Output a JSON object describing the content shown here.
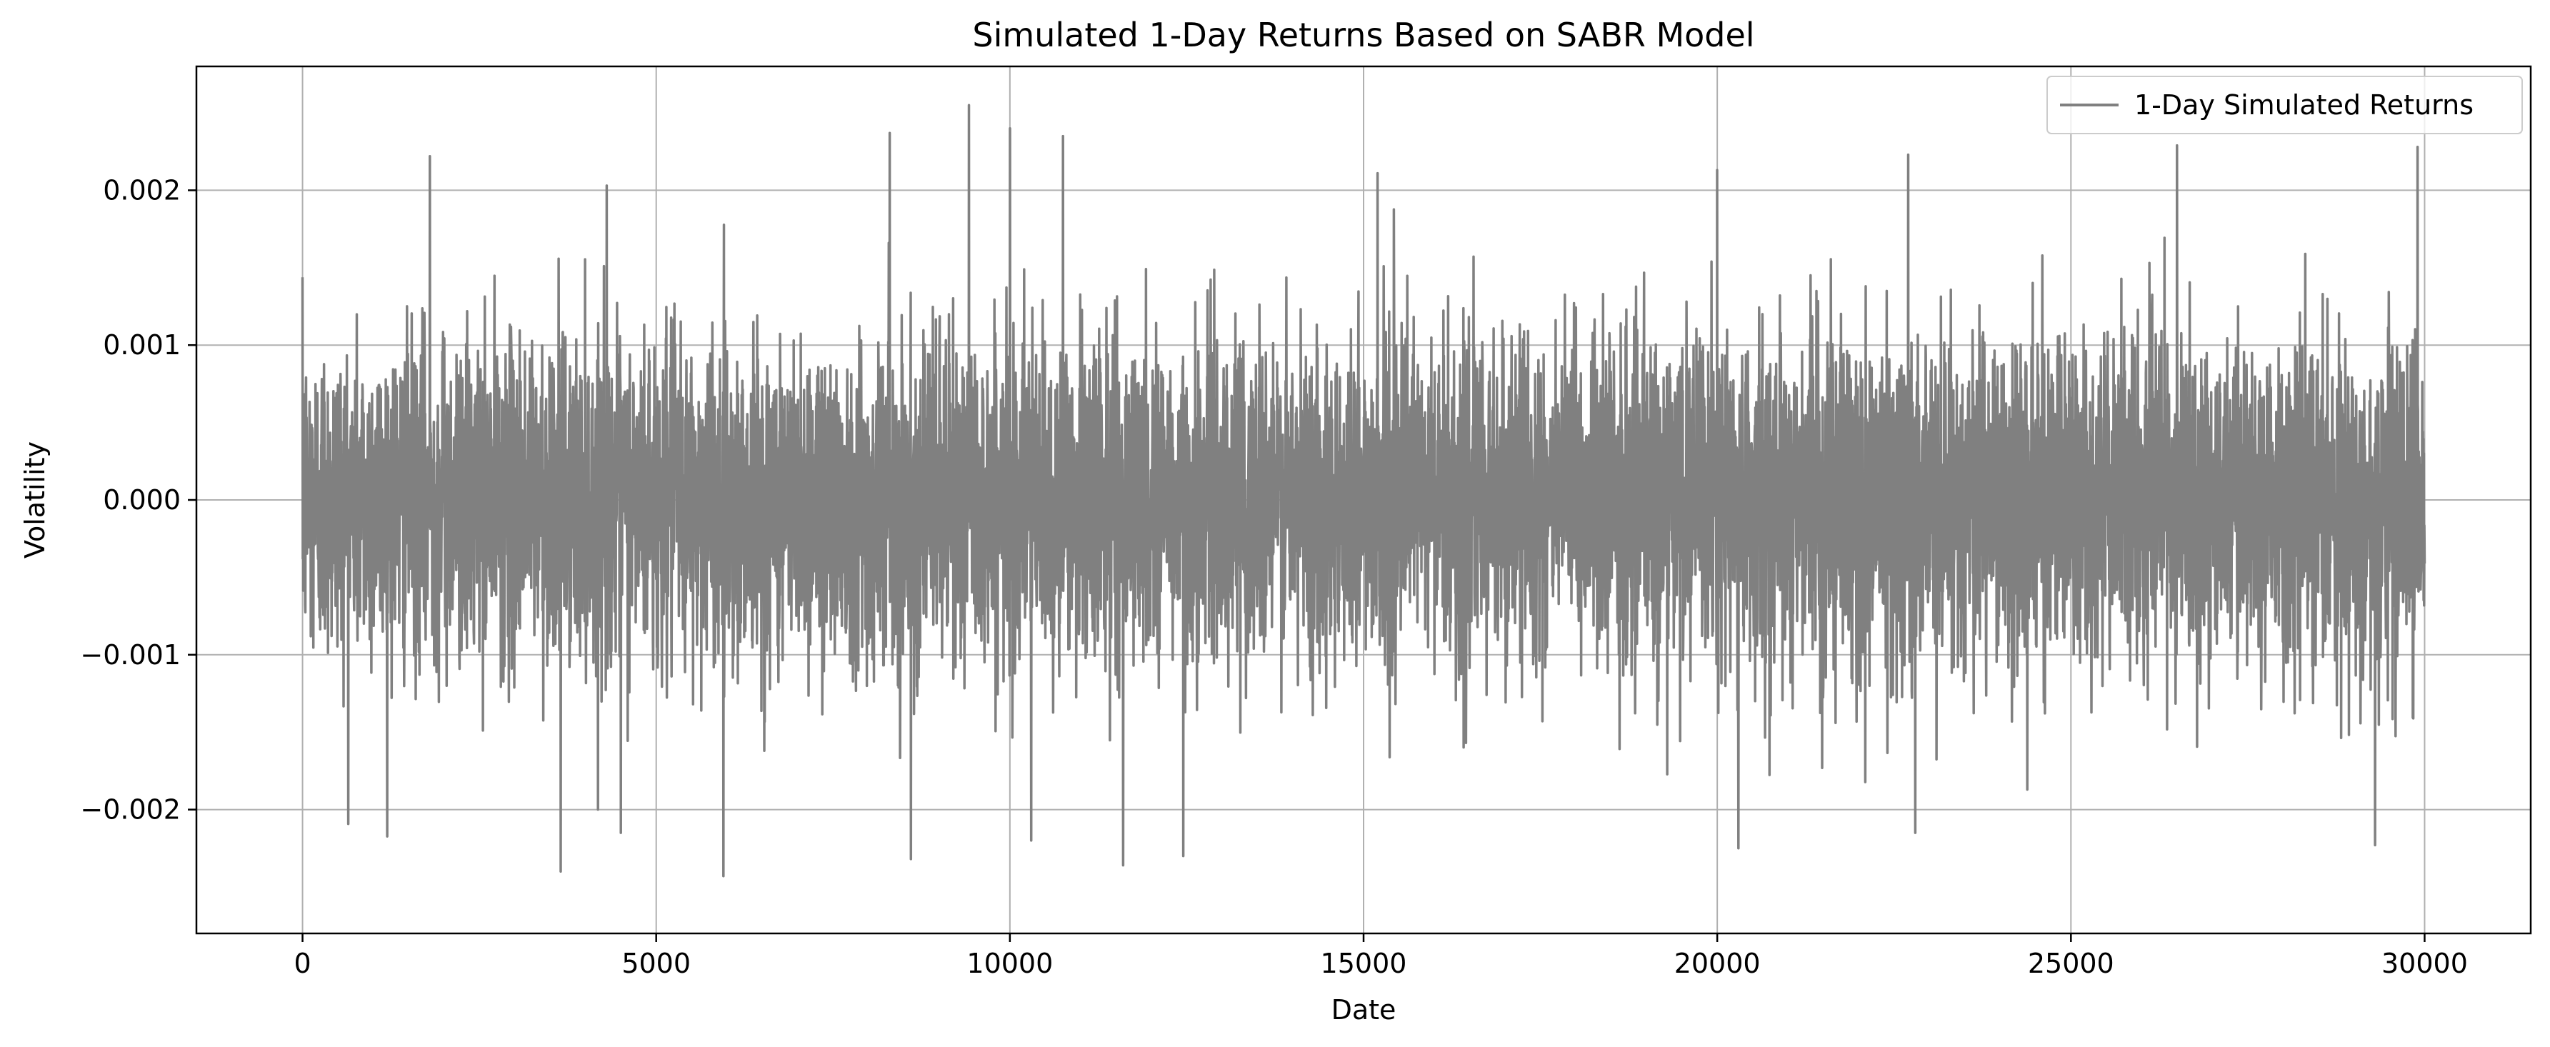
{
  "chart_data": {
    "type": "line",
    "title": "Simulated 1-Day Returns Based on SABR Model",
    "xlabel": "Date",
    "ylabel": "Volatility",
    "xlim": [
      -1500,
      31500
    ],
    "ylim": [
      -0.0028,
      0.0028
    ],
    "x_ticks": [
      0,
      5000,
      10000,
      15000,
      20000,
      25000,
      30000
    ],
    "x_tick_labels": [
      "0",
      "5000",
      "10000",
      "15000",
      "20000",
      "25000",
      "30000"
    ],
    "y_ticks": [
      -0.002,
      -0.001,
      0.0,
      0.001,
      0.002
    ],
    "y_tick_labels": [
      "−0.002",
      "−0.001",
      "0.000",
      "0.001",
      "0.002"
    ],
    "grid": true,
    "legend_position": "top-right",
    "series": [
      {
        "name": "1-Day Simulated Returns",
        "color": "#808080",
        "n_points": 30000,
        "x_range": [
          0,
          30000
        ],
        "typical_range": [
          -0.0012,
          0.0012
        ],
        "max_value": 0.00255,
        "min_value": -0.00243,
        "extreme_spikes": [
          {
            "x": 1800,
            "y": 0.00222
          },
          {
            "x": 3650,
            "y": -0.0024
          },
          {
            "x": 4300,
            "y": 0.00203
          },
          {
            "x": 4500,
            "y": -0.00215
          },
          {
            "x": 5950,
            "y": -0.00243
          },
          {
            "x": 8300,
            "y": 0.00237
          },
          {
            "x": 8600,
            "y": -0.00232
          },
          {
            "x": 9420,
            "y": 0.00255
          },
          {
            "x": 10000,
            "y": 0.0024
          },
          {
            "x": 10300,
            "y": -0.0022
          },
          {
            "x": 10750,
            "y": 0.00235
          },
          {
            "x": 11600,
            "y": -0.00236
          },
          {
            "x": 12450,
            "y": -0.0023
          },
          {
            "x": 15200,
            "y": 0.00211
          },
          {
            "x": 20000,
            "y": 0.00213
          },
          {
            "x": 20300,
            "y": -0.00225
          },
          {
            "x": 22700,
            "y": 0.00223
          },
          {
            "x": 22800,
            "y": -0.00215
          },
          {
            "x": 26500,
            "y": 0.00229
          },
          {
            "x": 29300,
            "y": -0.00223
          },
          {
            "x": 29900,
            "y": 0.00228
          }
        ]
      }
    ]
  }
}
